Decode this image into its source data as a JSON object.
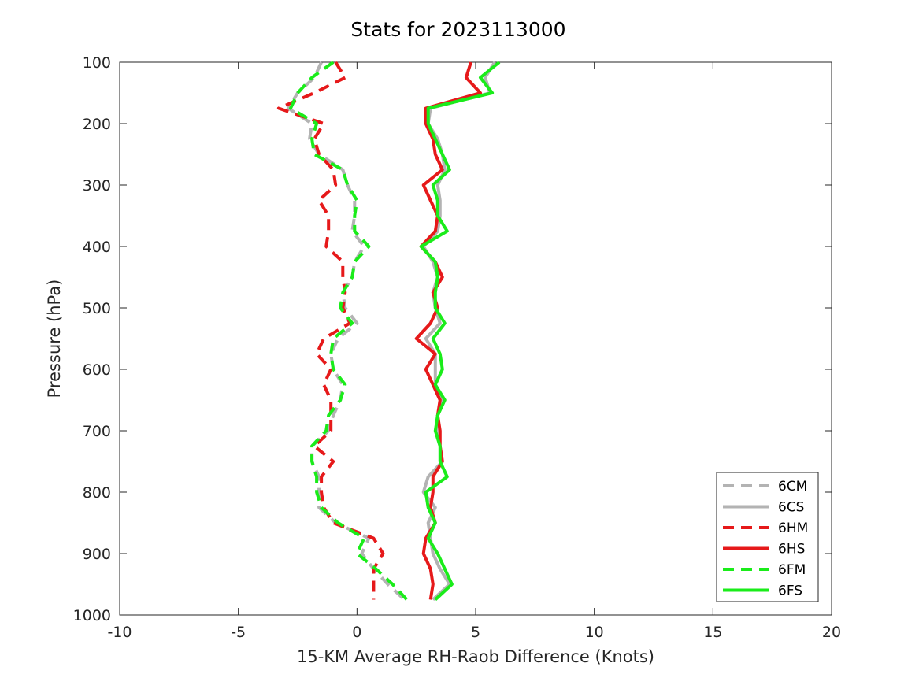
{
  "chart_data": {
    "type": "line",
    "title": "Stats for 2023113000",
    "xlabel": "15-KM Average RH-Raob Difference (Knots)",
    "ylabel": "Pressure (hPa)",
    "xlim": [
      -10,
      20
    ],
    "ylim": [
      100,
      1000
    ],
    "y_reversed": true,
    "x_ticks": [
      -10,
      -5,
      0,
      5,
      10,
      15,
      20
    ],
    "y_ticks": [
      100,
      200,
      300,
      400,
      500,
      600,
      700,
      800,
      900,
      1000
    ],
    "grid": false,
    "legend_position": "bottom-right",
    "pressure_levels": [
      100,
      125,
      150,
      175,
      200,
      225,
      250,
      275,
      300,
      325,
      350,
      375,
      400,
      425,
      450,
      475,
      500,
      525,
      550,
      575,
      600,
      625,
      650,
      675,
      700,
      725,
      750,
      775,
      800,
      825,
      850,
      875,
      900,
      925,
      950,
      975
    ],
    "series": [
      {
        "name": "6CM",
        "color": "#b3b3b3",
        "dashed": true,
        "values": [
          -1.5,
          -1.8,
          -2.5,
          -2.9,
          -1.9,
          -2.0,
          -1.6,
          -0.6,
          -0.4,
          -0.1,
          -0.1,
          -0.2,
          0.3,
          -0.1,
          -0.2,
          -0.6,
          -0.5,
          0.0,
          -0.8,
          -1.1,
          -1.0,
          -0.6,
          -0.7,
          -1.0,
          -1.2,
          -1.9,
          -1.9,
          -1.6,
          -1.6,
          -1.6,
          -0.9,
          0.5,
          0.2,
          0.7,
          1.3,
          2.0
        ]
      },
      {
        "name": "6CS",
        "color": "#b3b3b3",
        "dashed": false,
        "values": [
          5.8,
          5.4,
          5.6,
          3.1,
          3.0,
          3.4,
          3.6,
          3.7,
          3.4,
          3.5,
          3.5,
          3.4,
          2.8,
          3.2,
          3.4,
          3.2,
          3.3,
          3.5,
          2.9,
          3.3,
          3.3,
          3.3,
          3.6,
          3.4,
          3.4,
          3.5,
          3.6,
          3.0,
          2.8,
          3.3,
          3.0,
          3.1,
          3.2,
          3.5,
          3.9,
          3.2
        ]
      },
      {
        "name": "6HM",
        "color": "#e6191a",
        "dashed": true,
        "values": [
          -0.9,
          -0.5,
          -1.8,
          -3.3,
          -1.4,
          -1.8,
          -1.6,
          -1.0,
          -0.9,
          -1.6,
          -1.2,
          -1.2,
          -1.3,
          -0.6,
          -0.6,
          -0.5,
          -0.6,
          -0.3,
          -1.4,
          -1.7,
          -1.1,
          -1.4,
          -1.1,
          -1.1,
          -1.1,
          -1.8,
          -1.0,
          -1.5,
          -1.5,
          -1.4,
          -1.0,
          0.7,
          1.1,
          0.7,
          0.7,
          0.7
        ]
      },
      {
        "name": "6HS",
        "color": "#e6191a",
        "dashed": false,
        "values": [
          4.8,
          4.6,
          5.2,
          2.9,
          2.9,
          3.2,
          3.3,
          3.6,
          2.8,
          3.1,
          3.4,
          3.3,
          2.7,
          3.3,
          3.6,
          3.2,
          3.4,
          3.1,
          2.5,
          3.3,
          2.9,
          3.2,
          3.5,
          3.4,
          3.5,
          3.5,
          3.6,
          3.2,
          3.2,
          3.1,
          3.3,
          2.9,
          2.8,
          3.1,
          3.2,
          3.1
        ]
      },
      {
        "name": "6FM",
        "color": "#1aec1a",
        "dashed": true,
        "values": [
          -1.0,
          -1.9,
          -2.5,
          -2.8,
          -1.7,
          -1.9,
          -1.8,
          -0.6,
          -0.4,
          0.0,
          -0.1,
          -0.1,
          0.5,
          -0.1,
          -0.2,
          -0.6,
          -0.7,
          -0.2,
          -1.0,
          -1.1,
          -1.0,
          -0.5,
          -0.7,
          -1.2,
          -1.3,
          -1.9,
          -1.9,
          -1.7,
          -1.7,
          -1.5,
          -0.8,
          0.3,
          0.0,
          0.8,
          1.5,
          2.1
        ]
      },
      {
        "name": "6FS",
        "color": "#1aec1a",
        "dashed": false,
        "values": [
          6.0,
          5.2,
          5.7,
          3.0,
          3.0,
          3.3,
          3.6,
          3.9,
          3.2,
          3.4,
          3.4,
          3.8,
          2.7,
          3.3,
          3.4,
          3.3,
          3.3,
          3.7,
          3.2,
          3.5,
          3.6,
          3.3,
          3.7,
          3.4,
          3.3,
          3.5,
          3.5,
          3.8,
          2.9,
          3.0,
          3.3,
          3.0,
          3.4,
          3.7,
          4.0,
          3.3
        ]
      }
    ]
  }
}
